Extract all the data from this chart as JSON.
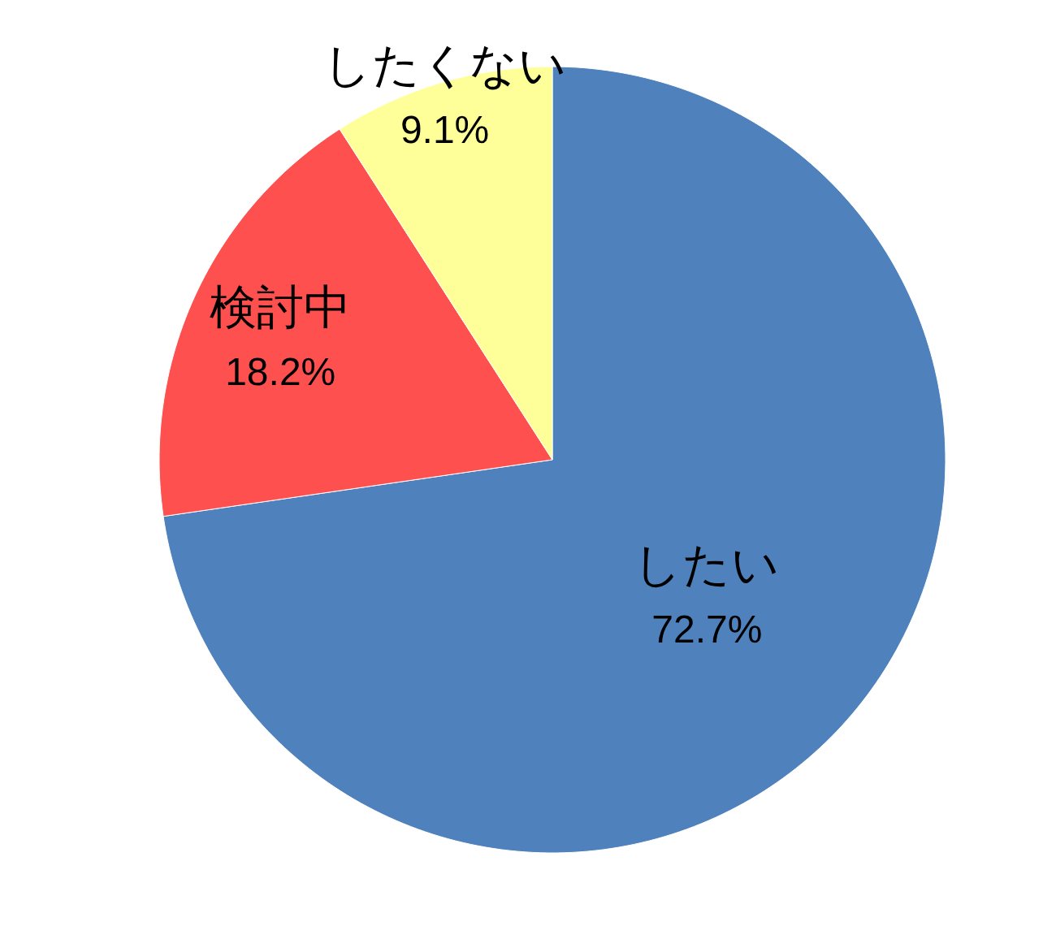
{
  "chart_data": {
    "type": "pie",
    "categories": [
      "したい",
      "検討中",
      "したくない"
    ],
    "values": [
      72.7,
      18.2,
      9.1
    ],
    "colors": [
      "#4f81bd",
      "#ff5050",
      "#ffff99"
    ],
    "value_labels": [
      "72.7%",
      "18.2%",
      "9.1%"
    ]
  }
}
